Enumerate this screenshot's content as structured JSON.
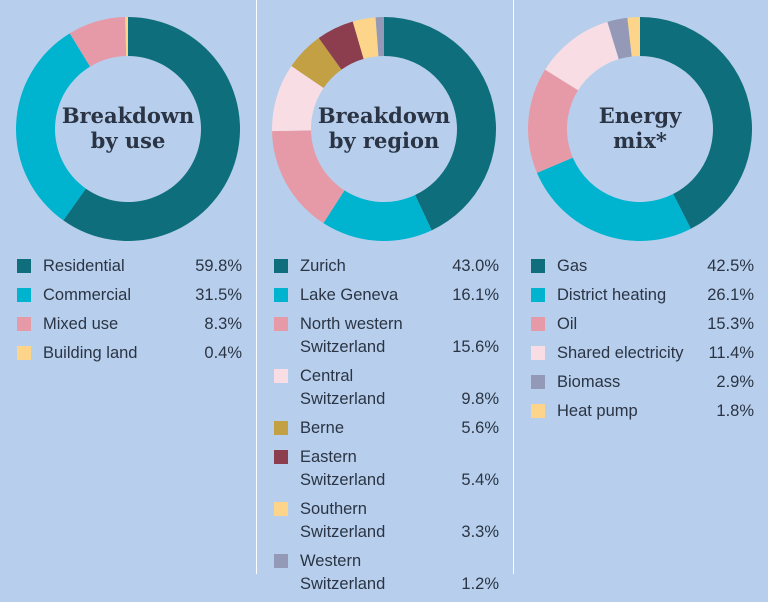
{
  "chart_data": [
    {
      "type": "pie",
      "title_lines": [
        "Breakdown",
        "by use"
      ],
      "categories": [
        "Residential",
        "Commercial",
        "Mixed use",
        "Building land"
      ],
      "values": [
        59.8,
        31.5,
        8.3,
        0.4
      ],
      "value_labels": [
        "59.8%",
        "31.5%",
        "8.3%",
        "0.4%"
      ],
      "colors": [
        "#0e6e7b",
        "#00b3cf",
        "#e69aa8",
        "#fcd48a"
      ],
      "label_lines": [
        [
          "Residential"
        ],
        [
          "Commercial"
        ],
        [
          "Mixed use"
        ],
        [
          "Building land"
        ]
      ]
    },
    {
      "type": "pie",
      "title_lines": [
        "Breakdown",
        "by region"
      ],
      "categories": [
        "Zurich",
        "Lake Geneva",
        "North western Switzerland",
        "Central Switzerland",
        "Berne",
        "Eastern Switzerland",
        "Southern Switzerland",
        "Western Switzerland"
      ],
      "values": [
        43.0,
        16.1,
        15.6,
        9.8,
        5.6,
        5.4,
        3.3,
        1.2
      ],
      "value_labels": [
        "43.0%",
        "16.1%",
        "15.6%",
        "9.8%",
        "5.6%",
        "5.4%",
        "3.3%",
        "1.2%"
      ],
      "colors": [
        "#0e6e7b",
        "#00b3cf",
        "#e69aa8",
        "#f9dde5",
        "#c3a043",
        "#8c3e4e",
        "#fcd48a",
        "#9399b7"
      ],
      "label_lines": [
        [
          "Zurich"
        ],
        [
          "Lake Geneva"
        ],
        [
          "North western",
          "Switzerland"
        ],
        [
          "Central Switzerland"
        ],
        [
          "Berne"
        ],
        [
          "Eastern Switzerland"
        ],
        [
          "Southern",
          "Switzerland"
        ],
        [
          "Western",
          "Switzerland"
        ]
      ]
    },
    {
      "type": "pie",
      "title_lines": [
        "Energy",
        "mix*"
      ],
      "categories": [
        "Gas",
        "District heating",
        "Oil",
        "Shared electricity",
        "Biomass",
        "Heat pump"
      ],
      "values": [
        42.5,
        26.1,
        15.3,
        11.4,
        2.9,
        1.8
      ],
      "value_labels": [
        "42.5%",
        "26.1%",
        "15.3%",
        "11.4%",
        "2.9%",
        "1.8%"
      ],
      "colors": [
        "#0e6e7b",
        "#00b3cf",
        "#e69aa8",
        "#f9dde5",
        "#9399b7",
        "#fcd48a"
      ],
      "label_lines": [
        [
          "Gas"
        ],
        [
          "District heating"
        ],
        [
          "Oil"
        ],
        [
          "Shared electricity"
        ],
        [
          "Biomass"
        ],
        [
          "Heat pump"
        ]
      ]
    }
  ]
}
